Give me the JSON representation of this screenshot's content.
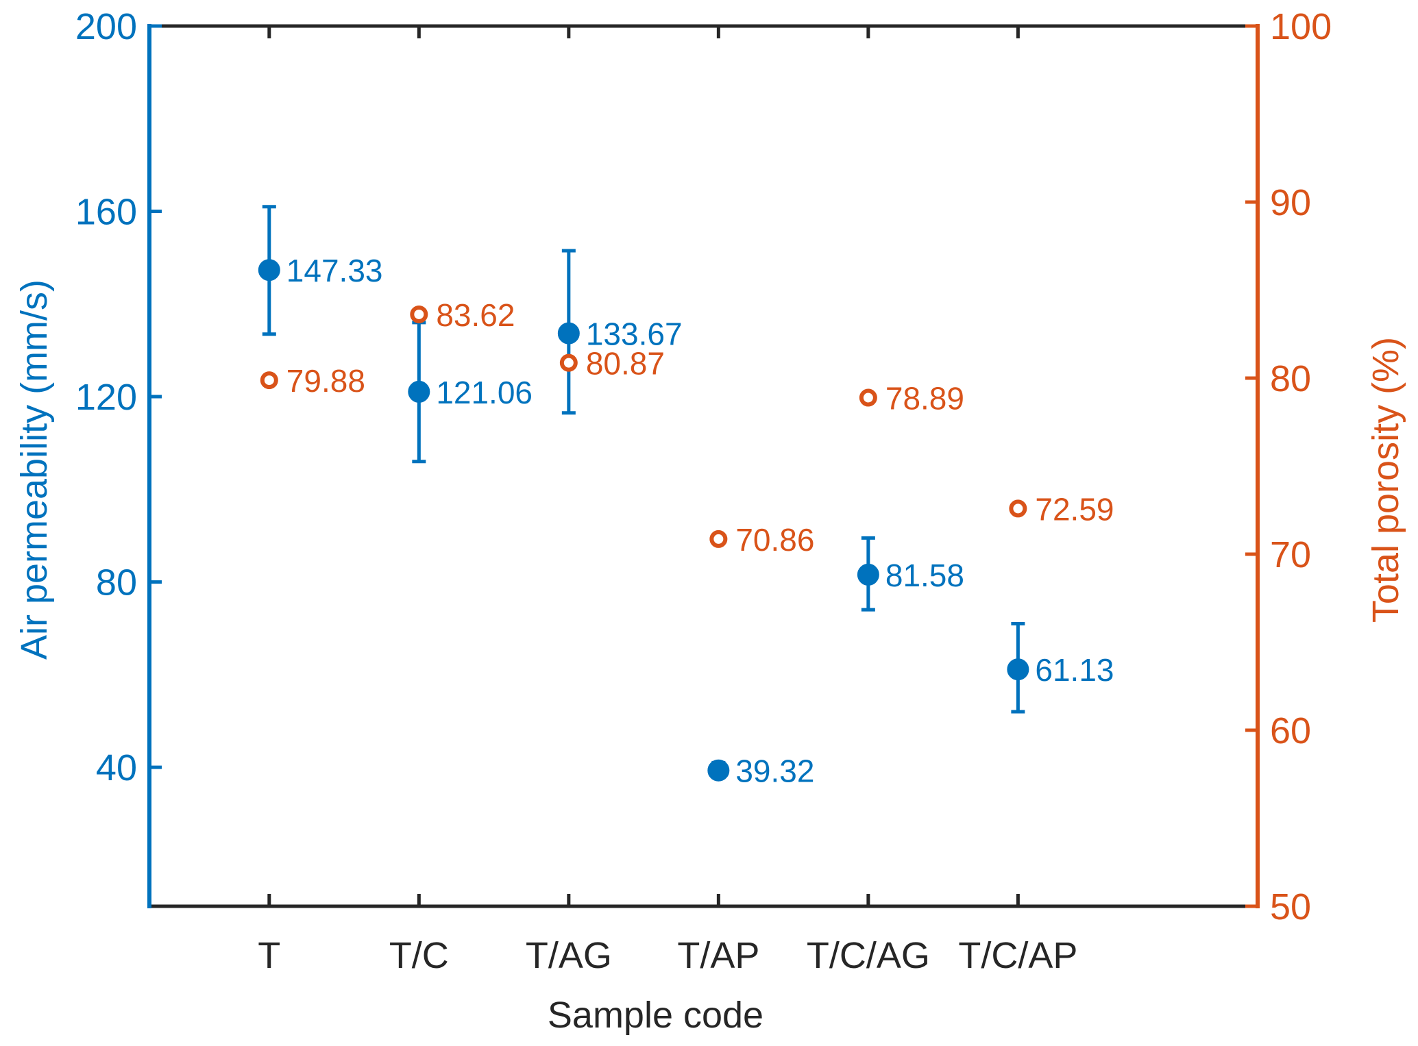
{
  "chart_data": {
    "type": "scatter",
    "xlabel": "Sample code",
    "ylabel_left": "Air permeability (mm/s)",
    "ylabel_right": "Total porosity (%)",
    "categories": [
      "T",
      "T/C",
      "T/AG",
      "T/AP",
      "T/C/AG",
      "T/C/AP"
    ],
    "ylim_left": [
      10,
      200
    ],
    "ylim_right": [
      50,
      100
    ],
    "yticks_left": [
      40,
      80,
      120,
      160,
      200
    ],
    "yticks_right": [
      50,
      60,
      70,
      80,
      90,
      100
    ],
    "colors": {
      "left": "#0072bd",
      "right": "#d95319",
      "axis": "#262626"
    },
    "series": [
      {
        "name": "Air permeability",
        "axis": "left",
        "marker": "filled-circle",
        "values": [
          147.33,
          121.06,
          133.67,
          39.32,
          81.58,
          61.13
        ],
        "labels": [
          "147.33",
          "121.06",
          "133.67",
          "39.32",
          "81.58",
          "61.13"
        ],
        "err_low": [
          133.5,
          106,
          116.5,
          37.8,
          74,
          52
        ],
        "err_high": [
          161,
          136,
          151.5,
          41,
          89.5,
          71
        ]
      },
      {
        "name": "Total porosity",
        "axis": "right",
        "marker": "open-circle",
        "values": [
          79.88,
          83.62,
          80.87,
          70.86,
          78.89,
          72.59
        ],
        "labels": [
          "79.88",
          "83.62",
          "80.87",
          "70.86",
          "78.89",
          "72.59"
        ]
      }
    ]
  }
}
